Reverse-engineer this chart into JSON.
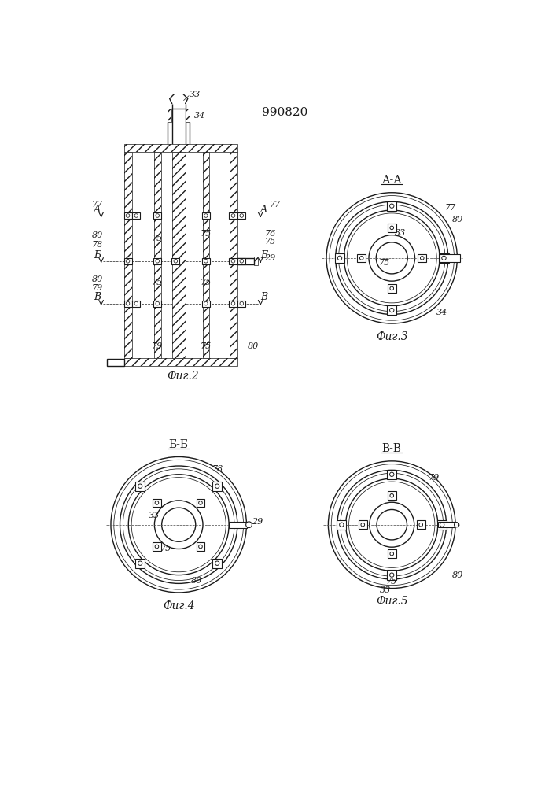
{
  "title": "990820",
  "bg_color": "#ffffff",
  "line_color": "#1a1a1a",
  "fig2_caption": "Фиг.2",
  "fig3_caption": "Фиг.3",
  "fig4_caption": "Фиг.4",
  "fig5_caption": "Фиг.5",
  "fig3_title": "А-А",
  "fig4_title": "Б-Б",
  "fig5_title": "В-В",
  "font_size_title": 11,
  "font_size_label": 8,
  "font_size_caption": 10
}
